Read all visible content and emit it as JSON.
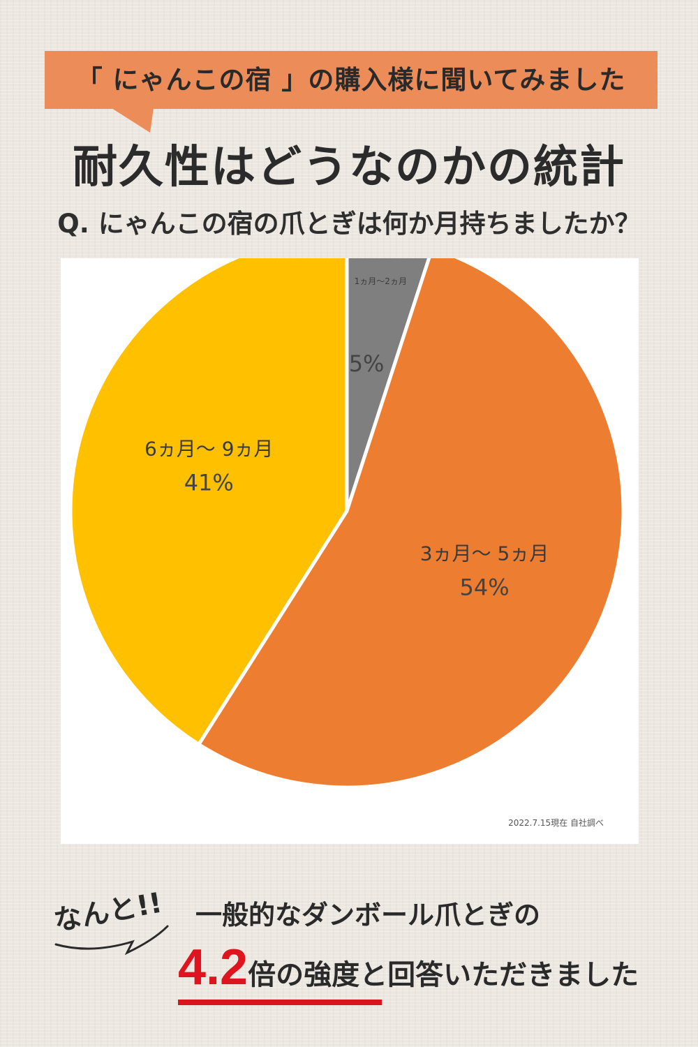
{
  "banner": {
    "text": "「 にゃんこの宿 」の購入様に聞いてみました",
    "color": "#ec8c58"
  },
  "title": "耐久性はどうなのかの統計",
  "question": "Q. にゃんこの宿の爪とぎは何か月持ちましたか？",
  "chart_data": {
    "type": "pie",
    "title": "",
    "categories": [
      "1ヵ月～2ヵ月",
      "3ヵ月～ 5ヵ月",
      "6ヵ月～ 9ヵ月"
    ],
    "values": [
      5,
      54,
      41
    ],
    "value_labels": [
      "5%",
      "54%",
      "41%"
    ],
    "colors": [
      "#7f7f7f",
      "#ed7d31",
      "#ffc000"
    ],
    "start_angle_deg": 0,
    "direction": "clockwise",
    "legend": "none"
  },
  "source_note": "2022.7.15現在 自社調べ",
  "result": {
    "exclaim": "なんと!!",
    "line1": "一般的なダンボール爪とぎの",
    "multiplier": "4.2",
    "rest": "倍の強度と回答いただきました",
    "highlight_color": "#e0141e"
  }
}
